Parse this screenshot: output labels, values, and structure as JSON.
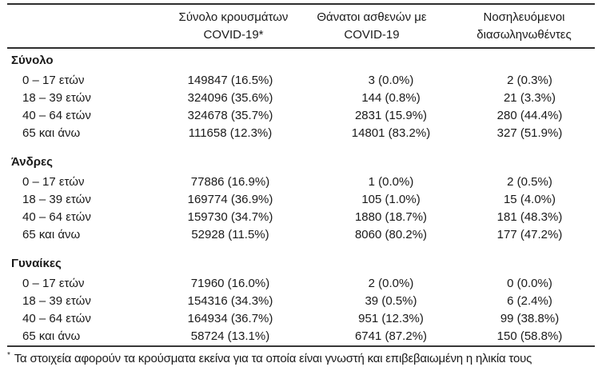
{
  "colors": {
    "text": "#1a1a1a",
    "rule": "#2e2e2e",
    "background": "#ffffff"
  },
  "header": {
    "columns": [
      {
        "line1": "Σύνολο κρουσμάτων",
        "line2": "COVID-19*"
      },
      {
        "line1": "Θάνατοι ασθενών με",
        "line2": "COVID-19"
      },
      {
        "line1": "Νοσηλευόμενοι",
        "line2": "διασωληνωθέντες"
      }
    ]
  },
  "sections": [
    {
      "label": "Σύνολο",
      "rows": [
        {
          "label": "0 – 17 ετών",
          "cases": "149847 (16.5%)",
          "deaths": "3 (0.0%)",
          "intubated": "2 (0.3%)"
        },
        {
          "label": "18 – 39 ετών",
          "cases": "324096 (35.6%)",
          "deaths": "144 (0.8%)",
          "intubated": "21 (3.3%)"
        },
        {
          "label": "40 – 64 ετών",
          "cases": "324678 (35.7%)",
          "deaths": "2831 (15.9%)",
          "intubated": "280 (44.4%)"
        },
        {
          "label": "65 και άνω",
          "cases": "111658 (12.3%)",
          "deaths": "14801 (83.2%)",
          "intubated": "327 (51.9%)"
        }
      ]
    },
    {
      "label": "Άνδρες",
      "rows": [
        {
          "label": "0 – 17 ετών",
          "cases": "77886 (16.9%)",
          "deaths": "1 (0.0%)",
          "intubated": "2 (0.5%)"
        },
        {
          "label": "18 – 39 ετών",
          "cases": "169774 (36.9%)",
          "deaths": "105 (1.0%)",
          "intubated": "15 (4.0%)"
        },
        {
          "label": "40 – 64 ετών",
          "cases": "159730 (34.7%)",
          "deaths": "1880 (18.7%)",
          "intubated": "181 (48.3%)"
        },
        {
          "label": "65 και άνω",
          "cases": "52928 (11.5%)",
          "deaths": "8060 (80.2%)",
          "intubated": "177 (47.2%)"
        }
      ]
    },
    {
      "label": "Γυναίκες",
      "rows": [
        {
          "label": "0 – 17 ετών",
          "cases": "71960 (16.0%)",
          "deaths": "2 (0.0%)",
          "intubated": "0 (0.0%)"
        },
        {
          "label": "18 – 39 ετών",
          "cases": "154316 (34.3%)",
          "deaths": "39 (0.5%)",
          "intubated": "6 (2.4%)"
        },
        {
          "label": "40 – 64 ετών",
          "cases": "164934 (36.7%)",
          "deaths": "951 (12.3%)",
          "intubated": "99 (38.8%)"
        },
        {
          "label": "65 και άνω",
          "cases": "58724 (13.1%)",
          "deaths": "6741 (87.2%)",
          "intubated": "150 (58.8%)"
        }
      ]
    }
  ],
  "footnote": {
    "marker": "*",
    "text": "Τα στοιχεία αφορούν τα κρούσματα εκείνα για τα οποία είναι γνωστή και επιβεβαιωμένη η ηλικία τους"
  },
  "chart_data": {
    "type": "table",
    "title": "",
    "columns": [
      "",
      "Σύνολο κρουσμάτων COVID-19*",
      "Θάνατοι ασθενών με COVID-19",
      "Νοσηλευόμενοι διασωληνωθέντες"
    ],
    "rows": [
      [
        "Σύνολο",
        "",
        "",
        ""
      ],
      [
        "0 – 17 ετών",
        "149847 (16.5%)",
        "3 (0.0%)",
        "2 (0.3%)"
      ],
      [
        "18 – 39 ετών",
        "324096 (35.6%)",
        "144 (0.8%)",
        "21 (3.3%)"
      ],
      [
        "40 – 64 ετών",
        "324678 (35.7%)",
        "2831 (15.9%)",
        "280 (44.4%)"
      ],
      [
        "65 και άνω",
        "111658 (12.3%)",
        "14801 (83.2%)",
        "327 (51.9%)"
      ],
      [
        "Άνδρες",
        "",
        "",
        ""
      ],
      [
        "0 – 17 ετών",
        "77886 (16.9%)",
        "1 (0.0%)",
        "2 (0.5%)"
      ],
      [
        "18 – 39 ετών",
        "169774 (36.9%)",
        "105 (1.0%)",
        "15 (4.0%)"
      ],
      [
        "40 – 64 ετών",
        "159730 (34.7%)",
        "1880 (18.7%)",
        "181 (48.3%)"
      ],
      [
        "65 και άνω",
        "52928 (11.5%)",
        "8060 (80.2%)",
        "177 (47.2%)"
      ],
      [
        "Γυναίκες",
        "",
        "",
        ""
      ],
      [
        "0 – 17 ετών",
        "71960 (16.0%)",
        "2 (0.0%)",
        "0 (0.0%)"
      ],
      [
        "18 – 39 ετών",
        "154316 (34.3%)",
        "39 (0.5%)",
        "6 (2.4%)"
      ],
      [
        "40 – 64 ετών",
        "164934 (36.7%)",
        "951 (12.3%)",
        "99 (38.8%)"
      ],
      [
        "65 και άνω",
        "58724 (13.1%)",
        "6741 (87.2%)",
        "150 (58.8%)"
      ]
    ]
  }
}
